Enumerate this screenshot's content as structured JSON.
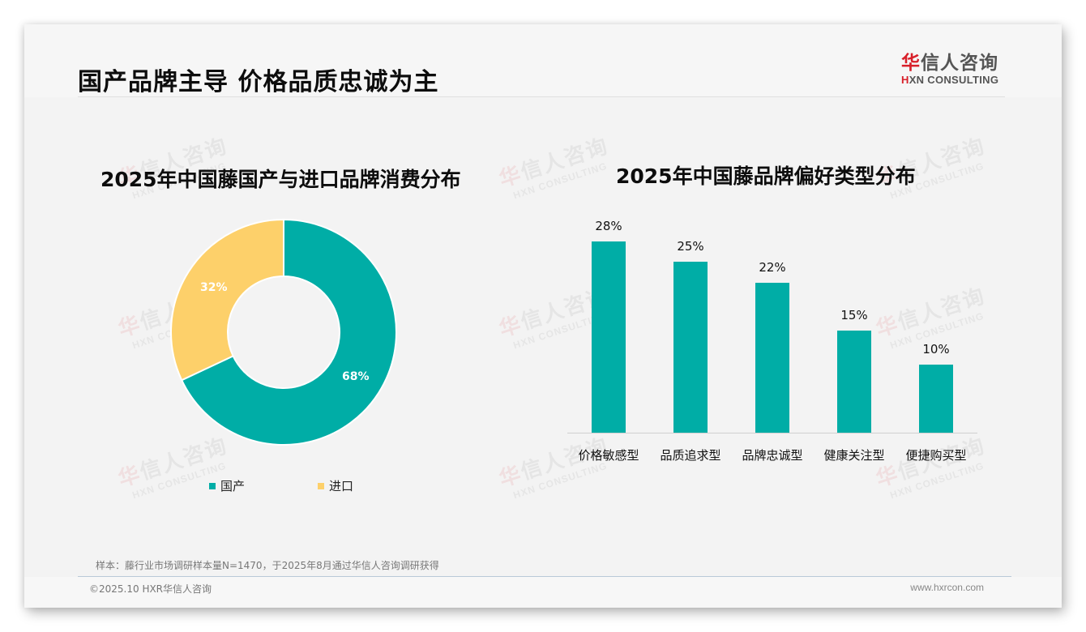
{
  "header": {
    "title": "国产品牌主导 价格品质忠诚为主",
    "logo": {
      "cn_first": "华",
      "cn_rest": "信人咨询",
      "en_first": "H",
      "en_rest": "XN CONSULTING"
    }
  },
  "watermark": {
    "cn_first": "华",
    "cn_rest": "信人咨询",
    "en": "HXN CONSULTING"
  },
  "colors": {
    "teal": "#00ada6",
    "yellow": "#fdd06a",
    "brand_red": "#d8202a"
  },
  "left_chart": {
    "title": "2025年中国藤国产与进口品牌消费分布",
    "legend": [
      {
        "label": "国产",
        "color": "#00ada6"
      },
      {
        "label": "进口",
        "color": "#fdd06a"
      }
    ],
    "labels": {
      "domestic": "68%",
      "imported": "32%"
    }
  },
  "right_chart": {
    "title": "2025年中国藤品牌偏好类型分布",
    "bars": [
      {
        "category": "价格敏感型",
        "value_label": "28%"
      },
      {
        "category": "品质追求型",
        "value_label": "25%"
      },
      {
        "category": "品牌忠诚型",
        "value_label": "22%"
      },
      {
        "category": "健康关注型",
        "value_label": "15%"
      },
      {
        "category": "便捷购买型",
        "value_label": "10%"
      }
    ]
  },
  "chart_data": [
    {
      "type": "pie",
      "title": "2025年中国藤国产与进口品牌消费分布",
      "categories": [
        "国产",
        "进口"
      ],
      "values": [
        68,
        32
      ],
      "unit": "%",
      "donut": true,
      "colors": [
        "#00ada6",
        "#fdd06a"
      ],
      "legend_position": "bottom"
    },
    {
      "type": "bar",
      "title": "2025年中国藤品牌偏好类型分布",
      "categories": [
        "价格敏感型",
        "品质追求型",
        "品牌忠诚型",
        "健康关注型",
        "便捷购买型"
      ],
      "values": [
        28,
        25,
        22,
        15,
        10
      ],
      "unit": "%",
      "xlabel": "",
      "ylabel": "",
      "ylim": [
        0,
        28
      ],
      "grid": false,
      "color": "#00ada6",
      "data_labels": true
    }
  ],
  "footer": {
    "note": "样本：藤行业市场调研样本量N=1470，于2025年8月通过华信人咨询调研获得",
    "copyright": "©2025.10 HXR华信人咨询",
    "website": "www.hxrcon.com"
  }
}
